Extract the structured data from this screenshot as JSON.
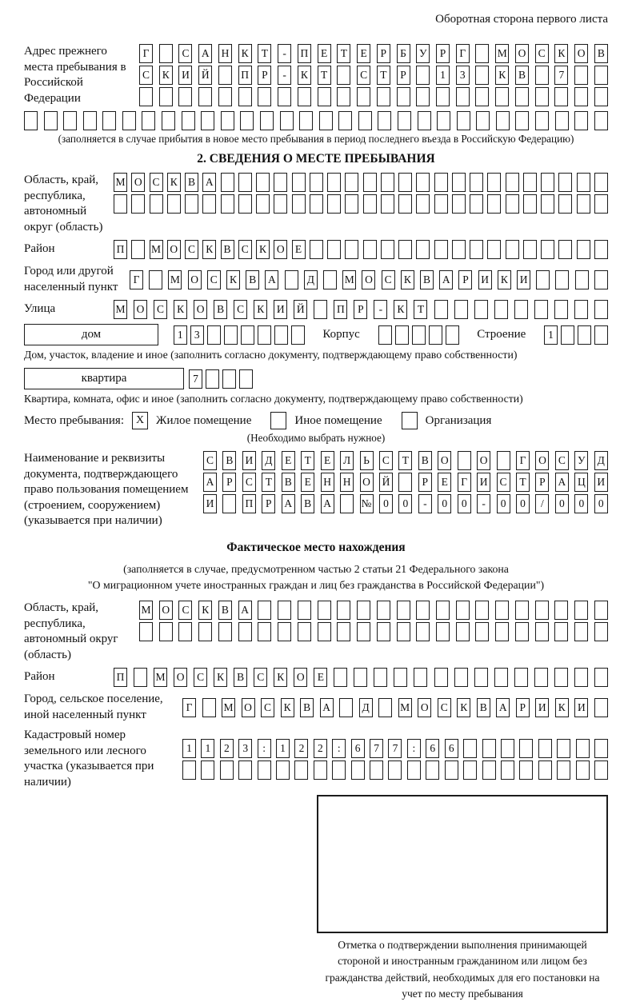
{
  "header": {
    "title": "Оборотная сторона первого листа"
  },
  "prev_address": {
    "label": "Адрес прежнего места пребывания в Российской Федерации",
    "row1": {
      "text": "Г САНКТ-ПЕТЕРБУРГ МОСКОВ",
      "total": 24
    },
    "row2": {
      "text": "СКИЙ ПР-КТ СТР 13 КВ 7",
      "total": 24
    },
    "row3": {
      "text": "",
      "total": 24
    },
    "row4": {
      "text": "",
      "total": 30
    },
    "note": "(заполняется в случае прибытия в новое место пребывания в период последнего въезда в Российскую Федерацию)"
  },
  "section2": {
    "title": "2. СВЕДЕНИЯ О МЕСТЕ ПРЕБЫВАНИЯ",
    "oblast": {
      "label": "Область, край, республика, автономный округ (область)",
      "row1": {
        "text": "МОСКВА",
        "total": 28
      },
      "row2": {
        "text": "",
        "total": 28
      }
    },
    "raion": {
      "label": "Район",
      "row": {
        "text": "П МОСКВСКОЕ",
        "total": 28
      }
    },
    "gorod": {
      "label": "Город или другой населенный пункт",
      "row": {
        "text": "Г МОСКВА Д МОСКВАРИКИ",
        "total": 25
      }
    },
    "ulitsa": {
      "label": "Улица",
      "row": {
        "text": "МОСКОВСКИЙ ПР-КТ",
        "total": 25
      }
    },
    "dom": {
      "label": "дом",
      "cells": {
        "text": "13",
        "total": 8
      },
      "korpus_label": "Корпус",
      "korpus_cells": {
        "text": "",
        "total": 5
      },
      "stroenie_label": "Строение",
      "stroenie_cells": {
        "text": "1",
        "total": 4
      },
      "note": "Дом, участок, владение и иное (заполнить согласно документу, подтверждающему право собственности)"
    },
    "kvartira": {
      "label": "квартира",
      "cells": {
        "text": "7",
        "total": 4
      },
      "note": "Квартира, комната, офис и иное (заполнить согласно документу, подтверждающему право собственности)"
    },
    "mesto": {
      "label": "Место пребывания:",
      "options": [
        {
          "mark": "X",
          "label": "Жилое помещение"
        },
        {
          "mark": "",
          "label": "Иное помещение"
        },
        {
          "mark": "",
          "label": "Организация"
        }
      ],
      "note": "(Необходимо выбрать нужное)"
    },
    "doc": {
      "label": "Наименование и реквизиты документа, подтверждающего право пользования помещением (строением, сооружением) (указывается при наличии)",
      "row1": {
        "text": "СВИДЕТЕЛЬСТВО О ГОСУД",
        "total": 21
      },
      "row2": {
        "text": "АРСТВЕННОЙ РЕГИСТРАЦИ",
        "total": 21
      },
      "row3": {
        "text": "И ПРАВА №00-00-00/000",
        "total": 21
      }
    }
  },
  "fact": {
    "title": "Фактическое место нахождения",
    "note1": "(заполняется в случае, предусмотренном частью 2 статьи 21 Федерального закона",
    "note2": "\"О миграционном учете иностранных граждан и лиц без гражданства в Российской Федерации\")",
    "oblast": {
      "label": "Область, край, республика, автономный округ (область)",
      "row1": {
        "text": "МОСКВА",
        "total": 24
      },
      "row2": {
        "text": "",
        "total": 24
      }
    },
    "raion": {
      "label": "Район",
      "row": {
        "text": "П МОСКВСКОЕ",
        "total": 25
      }
    },
    "gorod": {
      "label": "Город, сельское поселение, иной населенный пункт",
      "row": {
        "text": "Г МОСКВА Д МОСКВАРИКИ",
        "total": 22
      }
    },
    "kadastr": {
      "label": "Кадастровый номер земельного или лесного участка (указывается при наличии)",
      "row1": {
        "text": "1123:122:677:66",
        "total": 23
      },
      "row2": {
        "text": "",
        "total": 23
      }
    }
  },
  "stamp": {
    "caption": "Отметка о подтверждении выполнения принимающей стороной и иностранным гражданином или лицом без гражданства действий, необходимых для его постановки на учет по месту пребывания"
  }
}
